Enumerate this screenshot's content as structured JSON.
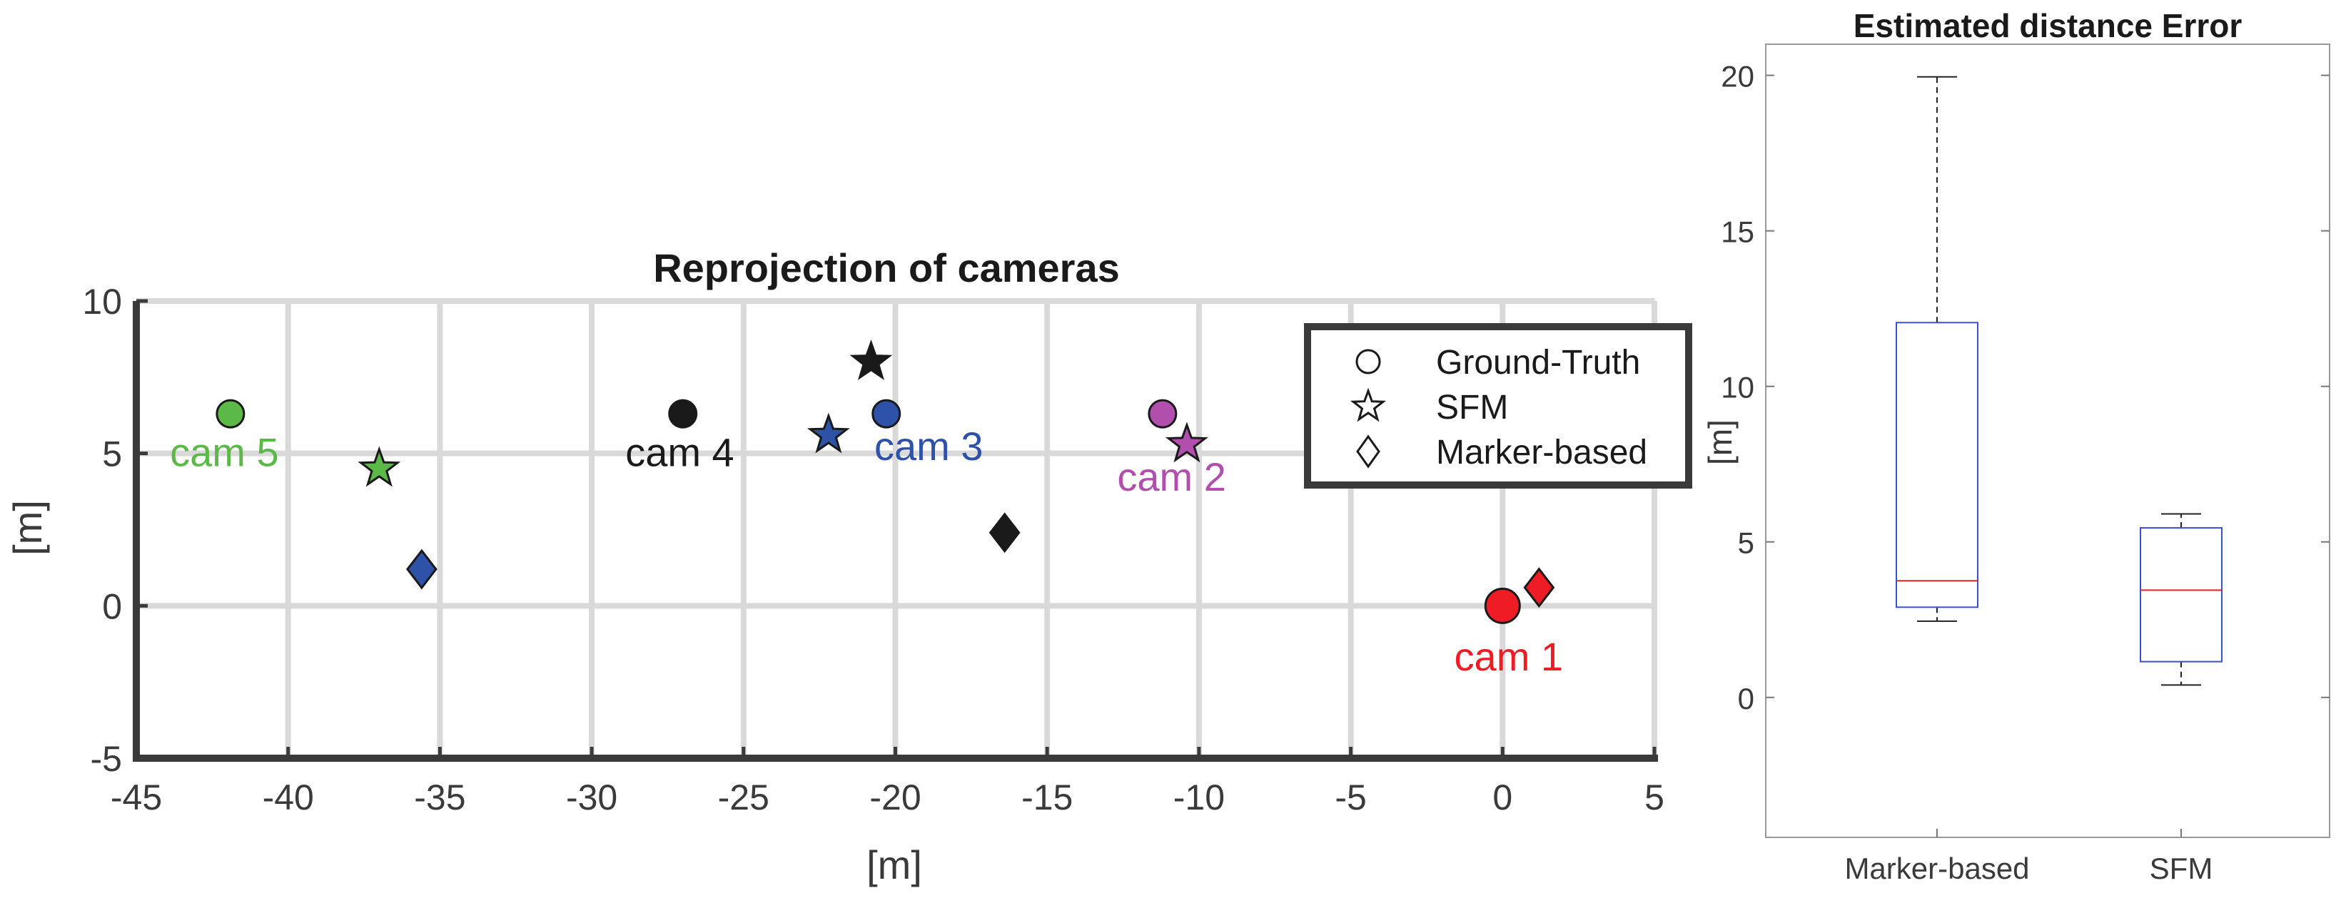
{
  "colors": {
    "cam1": "#ee1c24",
    "cam2": "#b24fae",
    "cam3": "#2e52a8",
    "cam4": "#1a1a1a",
    "cam5": "#5bba47",
    "grid": "#d9d9d9",
    "axis": "#3a3a3a",
    "box": "#3b4fd6",
    "median": "#ee1c24",
    "whisker": "#222222"
  },
  "chart_data": [
    {
      "type": "scatter",
      "title": "Reprojection of cameras",
      "xlabel": "[m]",
      "ylabel": "[m]",
      "xlim": [
        -45,
        5
      ],
      "ylim": [
        -5,
        10
      ],
      "grid": true,
      "xticks": [
        -45,
        -40,
        -35,
        -30,
        -25,
        -20,
        -15,
        -10,
        -5,
        0,
        5
      ],
      "xtick_labels": [
        "-45",
        "-40",
        "-35",
        "-30",
        "-25",
        "-20",
        "-15",
        "-10",
        "-5",
        "0",
        "5"
      ],
      "yticks": [
        -5,
        0,
        5,
        10
      ],
      "ytick_labels": [
        "-5",
        "0",
        "5",
        "10"
      ],
      "legend": {
        "placement": "top-right",
        "entries": [
          {
            "marker": "circle",
            "label": "Ground-Truth"
          },
          {
            "marker": "star",
            "label": "SFM"
          },
          {
            "marker": "diamond",
            "label": "Marker-based"
          }
        ]
      },
      "series": [
        {
          "name": "cam 1",
          "color_key": "cam1",
          "ground_truth": [
            0,
            0
          ],
          "sfm": null,
          "marker_based": [
            1.2,
            0.6
          ],
          "label_pos": [
            0.2,
            -1.7
          ]
        },
        {
          "name": "cam 2",
          "color_key": "cam2",
          "ground_truth": [
            -11.2,
            6.3
          ],
          "sfm": [
            -10.4,
            5.3
          ],
          "marker_based": null,
          "label_pos": [
            -10.9,
            4.2
          ]
        },
        {
          "name": "cam 3",
          "color_key": "cam3",
          "ground_truth": [
            -20.3,
            6.3
          ],
          "sfm": [
            -22.2,
            5.6
          ],
          "marker_based": [
            -35.6,
            1.2
          ],
          "label_pos": [
            -18.9,
            5.2
          ]
        },
        {
          "name": "cam 4",
          "color_key": "cam4",
          "ground_truth": [
            -27.0,
            6.3
          ],
          "sfm": [
            -20.8,
            8.0
          ],
          "marker_based": [
            -16.4,
            2.4
          ],
          "label_pos": [
            -27.1,
            5.0
          ]
        },
        {
          "name": "cam 5",
          "color_key": "cam5",
          "ground_truth": [
            -41.9,
            6.3
          ],
          "sfm": [
            -37.0,
            4.5
          ],
          "marker_based": null,
          "label_pos": [
            -42.1,
            5.0
          ]
        }
      ]
    },
    {
      "type": "box",
      "title": "Estimated distance Error",
      "xlabel": "",
      "ylabel": "[m]",
      "ylim": [
        -4.5,
        21
      ],
      "grid": false,
      "yticks": [
        0,
        5,
        10,
        15,
        20
      ],
      "ytick_labels": [
        "0",
        "5",
        "10",
        "15",
        "20"
      ],
      "categories": [
        "Marker-based",
        "SFM"
      ],
      "boxes": [
        {
          "name": "Marker-based",
          "min": 2.45,
          "q1": 2.9,
          "median": 3.75,
          "q3": 12.05,
          "max": 19.95
        },
        {
          "name": "SFM",
          "min": 0.4,
          "q1": 1.15,
          "median": 3.45,
          "q3": 5.45,
          "max": 5.9
        }
      ]
    }
  ]
}
